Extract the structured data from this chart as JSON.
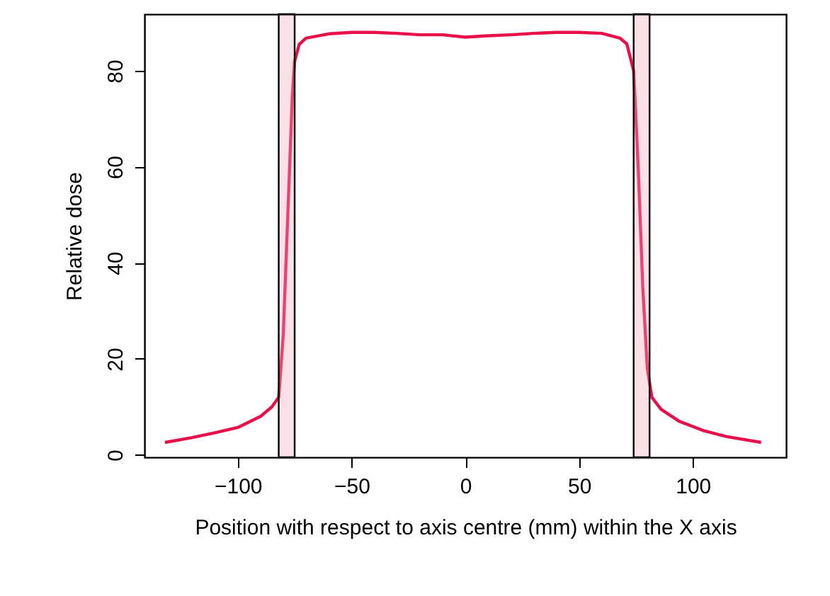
{
  "chart_data": {
    "type": "line",
    "xlabel": "Position with respect to axis centre (mm) within the X axis",
    "ylabel": "Relative dose",
    "x": [
      -132,
      -120,
      -110,
      -100,
      -90,
      -85,
      -82,
      -80,
      -78,
      -76,
      -75,
      -73,
      -70,
      -60,
      -50,
      -40,
      -30,
      -20,
      -10,
      0,
      10,
      20,
      30,
      40,
      50,
      60,
      68,
      71,
      74,
      76,
      78,
      80,
      82,
      86,
      94,
      105,
      115,
      130
    ],
    "series": [
      {
        "color": "#e8104a",
        "values": [
          2.6,
          3.6,
          4.6,
          5.7,
          8,
          10,
          12,
          25,
          50,
          75,
          82,
          85.5,
          86.8,
          87.7,
          88,
          88,
          87.8,
          87.5,
          87.5,
          87,
          87.3,
          87.5,
          87.8,
          88,
          88,
          87.8,
          86.8,
          85.6,
          80,
          60,
          35,
          18,
          12,
          9.5,
          7,
          5,
          3.8,
          2.6
        ]
      }
    ],
    "xlim": [
      -141,
      141
    ],
    "ylim": [
      -0.5,
      91.8
    ],
    "xticks": [
      -100,
      -50,
      0,
      50,
      100
    ],
    "yticks": [
      0,
      20,
      40,
      60,
      80
    ],
    "grid": false,
    "marker": "none",
    "line_style": "solid",
    "bands": [
      {
        "axis": "x",
        "from": -82,
        "to": -75,
        "color": "#f4a6bc"
      },
      {
        "axis": "x",
        "from": 74,
        "to": 81,
        "color": "#f4a6bc"
      }
    ]
  }
}
